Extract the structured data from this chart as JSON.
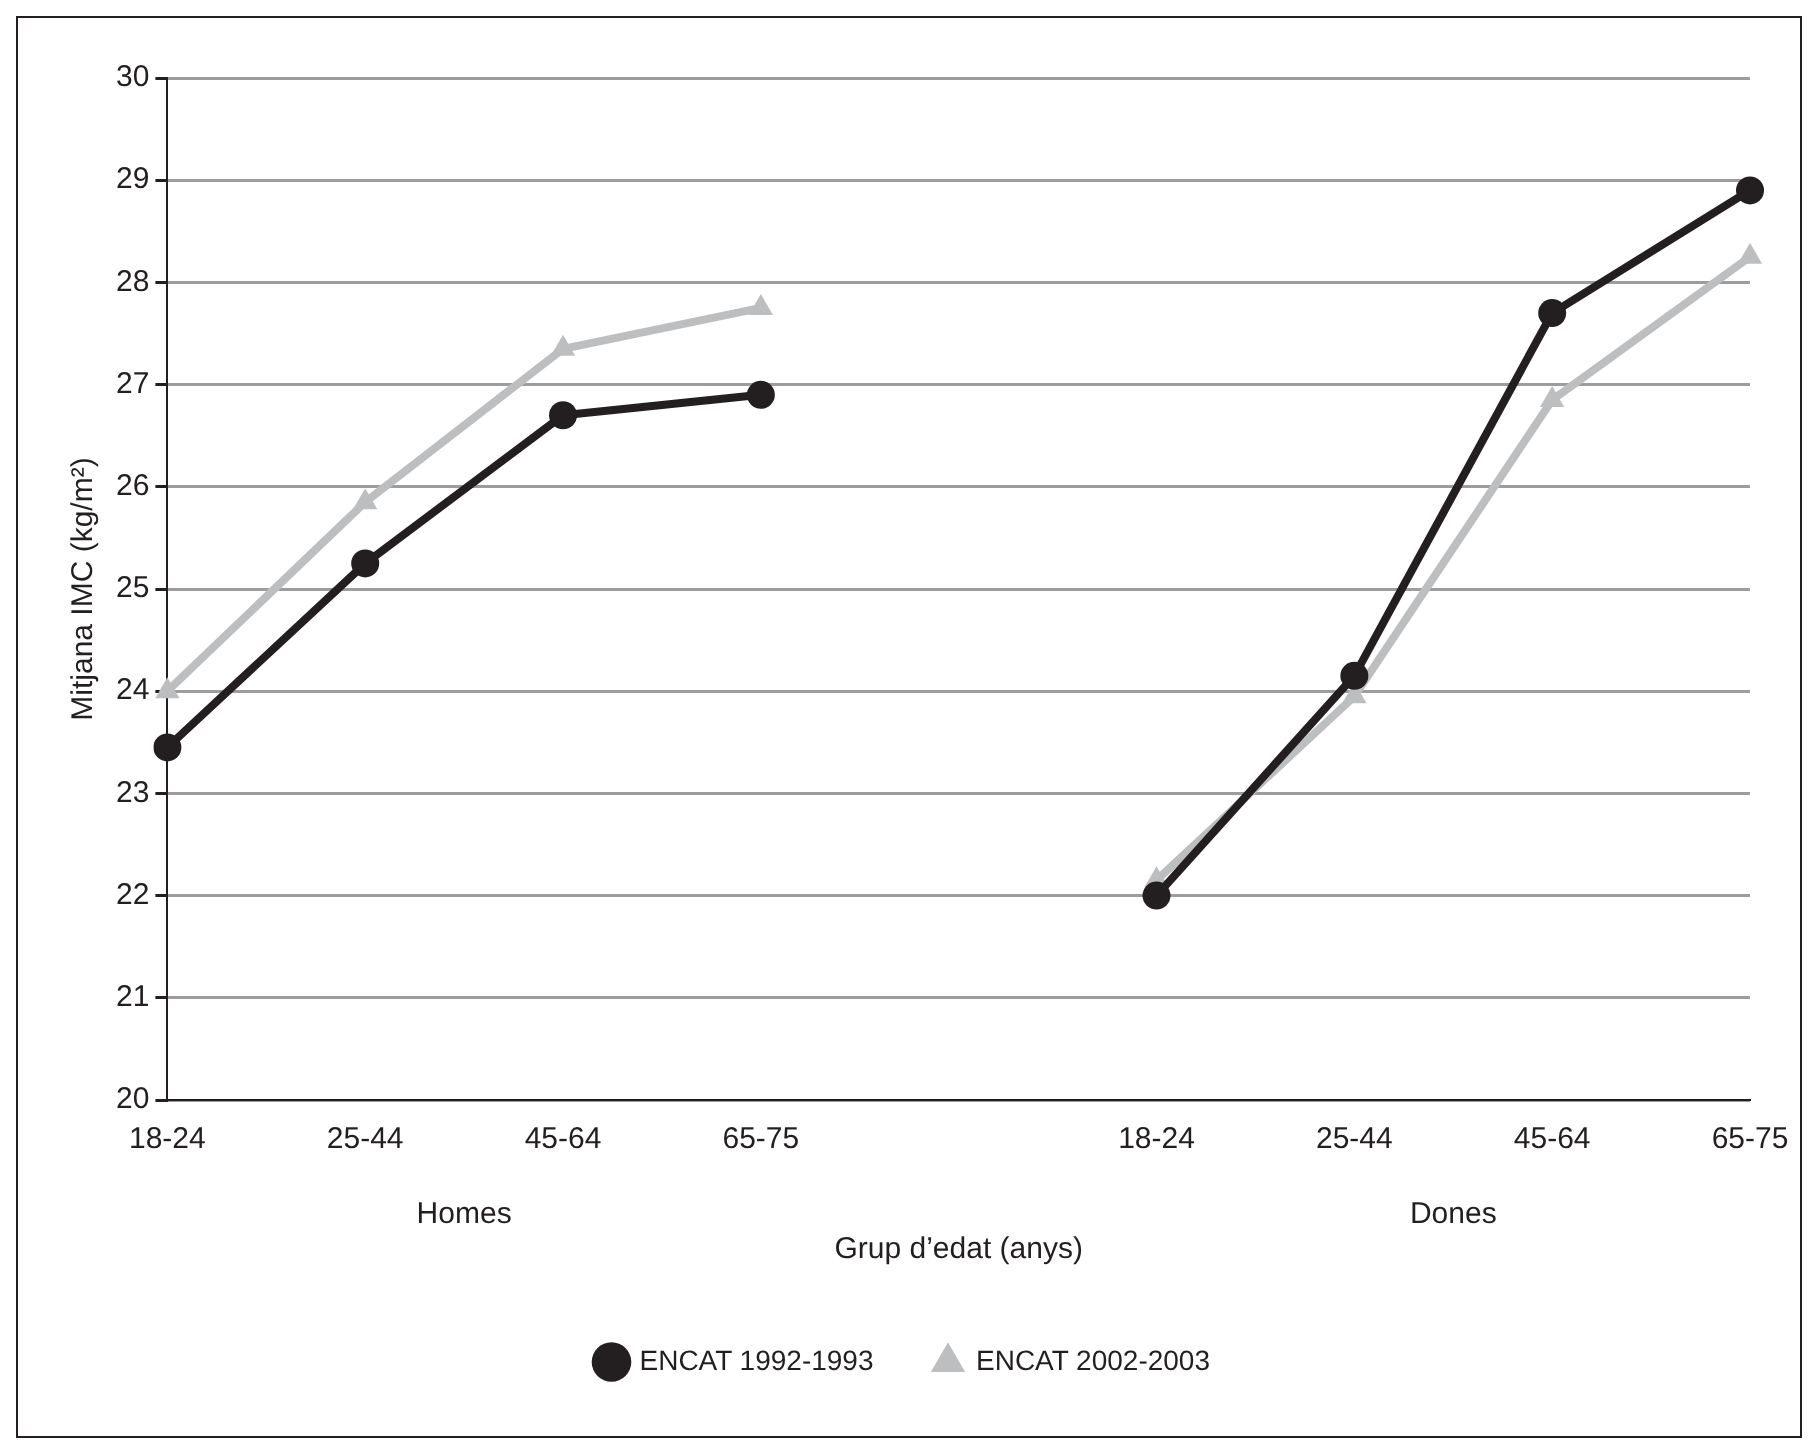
{
  "chart_data": {
    "type": "line",
    "ylabel": "Mitjana IMC (kg/m²)",
    "xlabel": "Grup d’edat (anys)",
    "categories": [
      "18-24",
      "25-44",
      "45-64",
      "65-75",
      null,
      "18-24",
      "25-44",
      "45-64",
      "65-75"
    ],
    "annotations": [
      "Homes",
      "Dones"
    ],
    "series": [
      {
        "name": "ENCAT 1992-1993",
        "color": "#231f20",
        "marker": "circle",
        "values": [
          23.45,
          25.25,
          26.7,
          26.9,
          null,
          22.0,
          24.15,
          27.7,
          28.9
        ]
      },
      {
        "name": "ENCAT 2002-2003",
        "color": "#bcbec0",
        "marker": "triangle",
        "values": [
          24.0,
          25.85,
          27.35,
          27.75,
          null,
          22.15,
          23.95,
          26.85,
          28.25
        ]
      }
    ],
    "ylim": [
      20,
      30
    ],
    "yticks": [
      20,
      21,
      22,
      23,
      24,
      25,
      26,
      27,
      28,
      29,
      30
    ],
    "grid": "y",
    "legend": "bottom",
    "line_style": "solid"
  }
}
